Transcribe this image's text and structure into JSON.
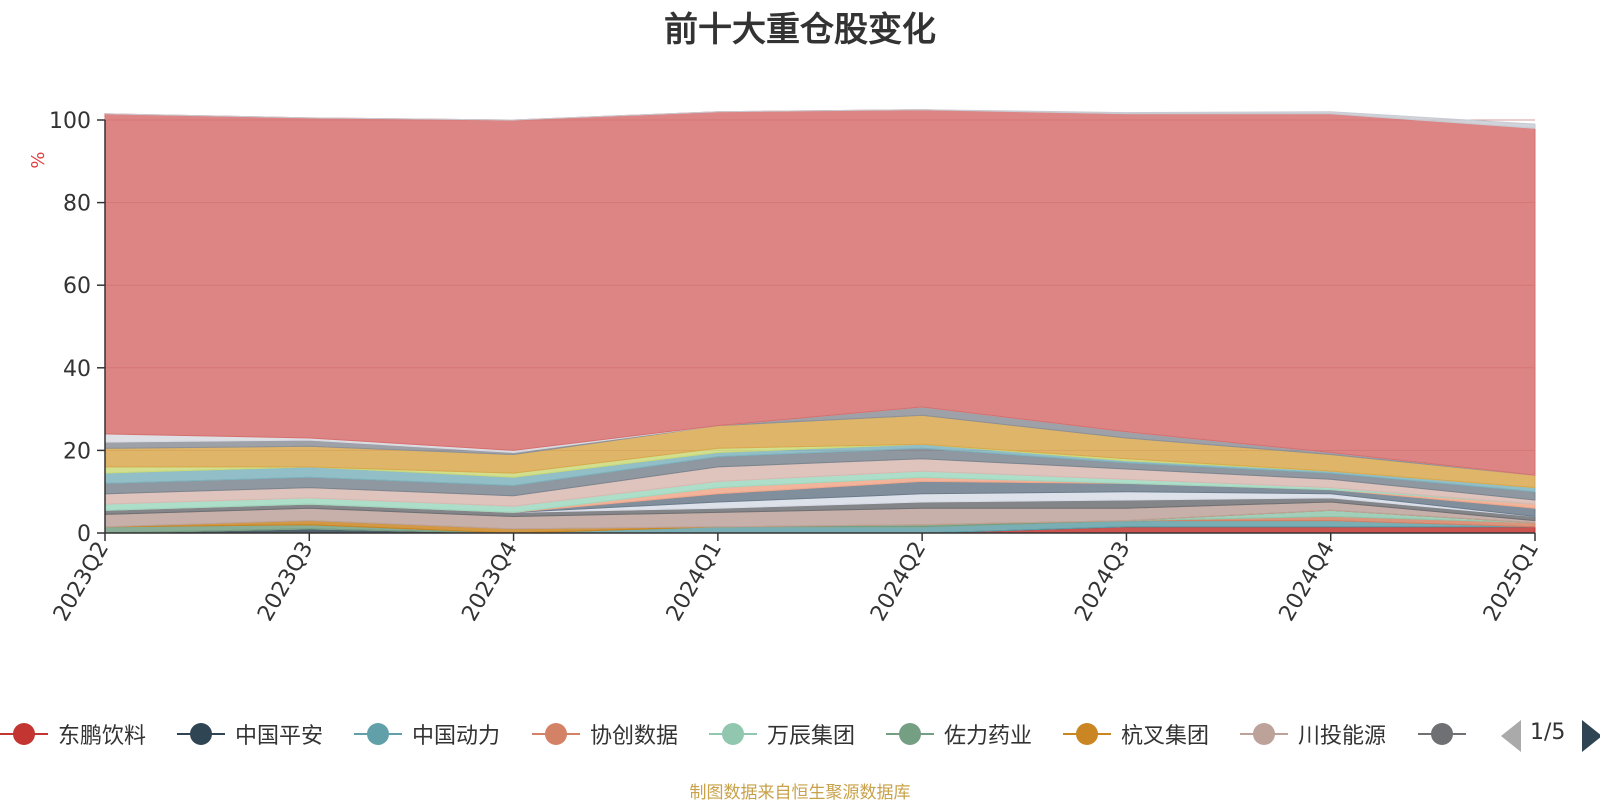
{
  "title": "前十大重仓股变化",
  "source_note": "制图数据来自恒生聚源数据库",
  "legend_page": "1/5",
  "chart_data": {
    "type": "area",
    "stacked": true,
    "title": "前十大重仓股变化",
    "ylabel": "%",
    "ylim": [
      0,
      100
    ],
    "yticks": [
      0,
      20,
      40,
      60,
      80,
      100
    ],
    "grid": true,
    "categories": [
      "2023Q2",
      "2023Q3",
      "2023Q4",
      "2024Q1",
      "2024Q2",
      "2024Q3",
      "2024Q4",
      "2025Q1"
    ],
    "legend_position": "bottom",
    "series": [
      {
        "name": "东鹏饮料",
        "color": "#c23531",
        "values": [
          0,
          0,
          0,
          0,
          0,
          1.5,
          1.5,
          1.5
        ],
        "in_legend": true
      },
      {
        "name": "中国平安",
        "color": "#2f4554",
        "values": [
          0,
          1.0,
          0,
          0,
          0,
          0,
          0,
          0
        ],
        "in_legend": true
      },
      {
        "name": "中国动力",
        "color": "#61a0a8",
        "values": [
          0,
          0,
          0,
          1.5,
          1.5,
          1.5,
          1.5,
          0
        ],
        "in_legend": true
      },
      {
        "name": "协创数据",
        "color": "#d48265",
        "values": [
          0,
          0,
          0,
          0,
          0,
          0,
          1.0,
          1.0
        ],
        "in_legend": true
      },
      {
        "name": "万辰集团",
        "color": "#91c7ae",
        "values": [
          0,
          0,
          0,
          0,
          0,
          0,
          1.5,
          0
        ],
        "in_legend": true
      },
      {
        "name": "佐力药业",
        "color": "#749f83",
        "values": [
          1.5,
          1.0,
          0,
          0,
          0.5,
          0,
          0,
          0
        ],
        "in_legend": true
      },
      {
        "name": "杭叉集团",
        "color": "#ca8622",
        "values": [
          0,
          1.0,
          1.0,
          0,
          0,
          0,
          0,
          0
        ],
        "in_legend": true
      },
      {
        "name": "川投能源",
        "color": "#bda29a",
        "values": [
          3.0,
          3.0,
          3.0,
          3.5,
          4.0,
          3.0,
          2.0,
          0.5
        ],
        "in_legend": true
      },
      {
        "name": "",
        "color": "#6e7074",
        "values": [
          1.0,
          1.0,
          1.0,
          1.0,
          1.5,
          2.0,
          1.0,
          1.0
        ],
        "in_legend": true
      },
      {
        "name": "",
        "color": "#d7dce6",
        "values": [
          0,
          0,
          0,
          1.5,
          2.0,
          2.0,
          1.0,
          0
        ],
        "in_legend": false
      },
      {
        "name": "",
        "color": "#6b7b8c",
        "values": [
          0,
          0,
          0,
          2.0,
          3.0,
          2.0,
          1.0,
          2.0
        ],
        "in_legend": false
      },
      {
        "name": "",
        "color": "#f0a78a",
        "values": [
          0,
          0,
          0,
          1.5,
          1.0,
          0,
          0,
          1.0
        ],
        "in_legend": false
      },
      {
        "name": "",
        "color": "#9fd8c0",
        "values": [
          1.5,
          1.5,
          1.5,
          1.5,
          1.5,
          1.0,
          0.5,
          0
        ],
        "in_legend": false
      },
      {
        "name": "",
        "color": "#d9b9b2",
        "values": [
          2.5,
          2.5,
          2.5,
          3.5,
          3.0,
          2.5,
          2.0,
          1.0
        ],
        "in_legend": false
      },
      {
        "name": "",
        "color": "#7b858f",
        "values": [
          2.5,
          2.5,
          2.5,
          2.5,
          2.5,
          1.5,
          1.5,
          2.0
        ],
        "in_legend": false
      },
      {
        "name": "",
        "color": "#7fb3bd",
        "values": [
          2.5,
          2.5,
          2.0,
          1.0,
          1.0,
          0.5,
          0.5,
          1.0
        ],
        "in_legend": false
      },
      {
        "name": "",
        "color": "#c9d97a",
        "values": [
          1.5,
          0,
          1.0,
          1.0,
          0,
          0.5,
          0,
          0
        ],
        "in_legend": false
      },
      {
        "name": "",
        "color": "#d9a84f",
        "values": [
          4.5,
          5.0,
          4.5,
          5.5,
          7.0,
          5.0,
          4.0,
          3.0
        ],
        "in_legend": false
      },
      {
        "name": "",
        "color": "#8d9199",
        "values": [
          1.5,
          1.5,
          0.5,
          0,
          2.0,
          1.5,
          0.5,
          0
        ],
        "in_legend": false
      },
      {
        "name": "",
        "color": "#d9dbe2",
        "values": [
          2.0,
          0.5,
          0.5,
          0,
          0,
          0,
          0,
          0
        ],
        "in_legend": false
      },
      {
        "name": "",
        "color": "#d6706e",
        "values": [
          77.5,
          77.5,
          80.0,
          76.0,
          72.0,
          77.0,
          82.0,
          84.0
        ],
        "in_legend": false
      },
      {
        "name": "",
        "color": "#c8cbd2",
        "values": [
          0,
          0,
          0,
          0,
          0,
          0.3,
          0.5,
          1.0
        ],
        "in_legend": false
      }
    ]
  }
}
